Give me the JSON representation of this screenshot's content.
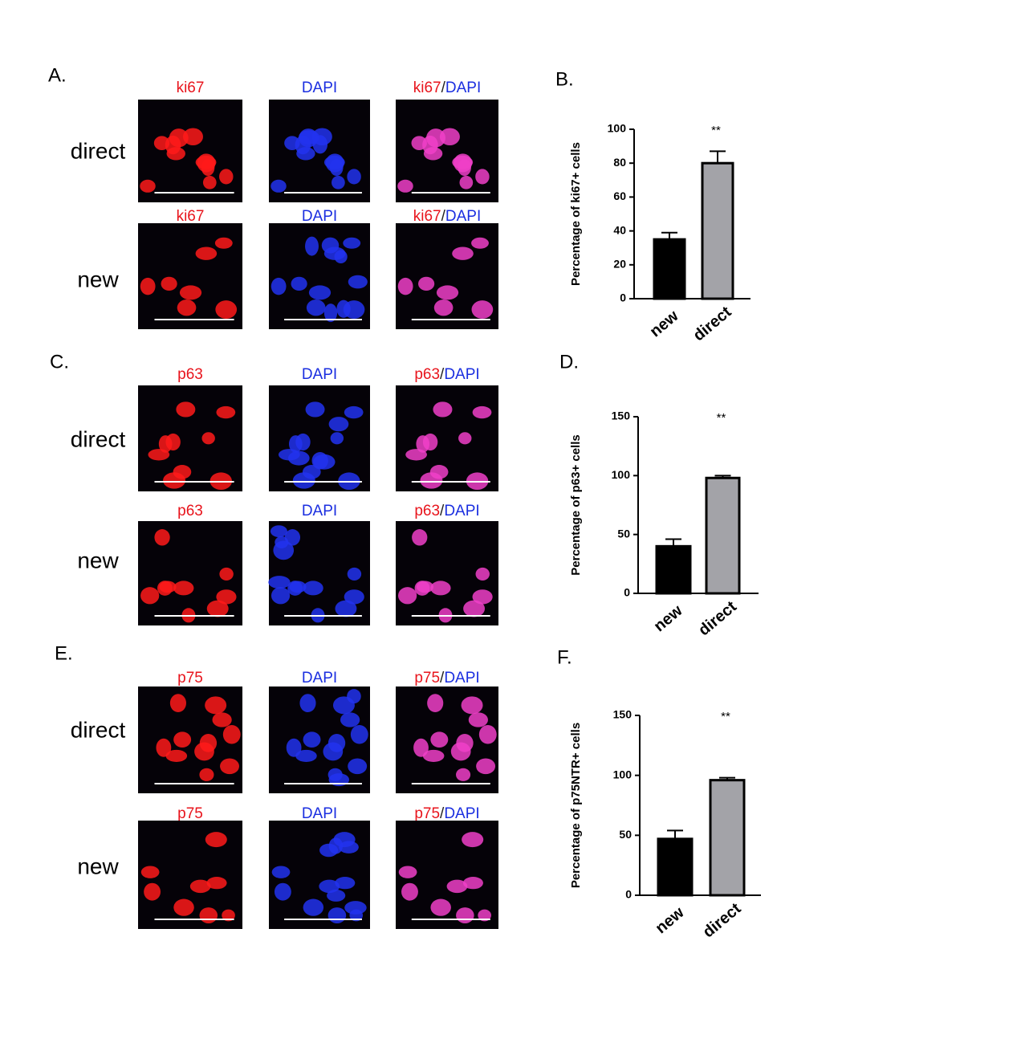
{
  "image_panels": [
    {
      "panel_label": "A.",
      "rows": [
        {
          "name": "direct",
          "channel_labels": [
            "ki67",
            "DAPI"
          ],
          "merge_label": [
            "ki67",
            "/",
            "DAPI"
          ]
        },
        {
          "name": "new",
          "channel_labels": [
            "ki67",
            "DAPI"
          ],
          "merge_label": [
            "ki67",
            "/",
            "DAPI"
          ]
        }
      ]
    },
    {
      "panel_label": "C.",
      "rows": [
        {
          "name": "direct",
          "channel_labels": [
            "p63",
            "DAPI"
          ],
          "merge_label": [
            "p63",
            "/",
            "DAPI"
          ]
        },
        {
          "name": "new",
          "channel_labels": [
            "p63",
            "DAPI"
          ],
          "merge_label": [
            "p63",
            "/",
            "DAPI"
          ]
        }
      ]
    },
    {
      "panel_label": "E.",
      "rows": [
        {
          "name": "direct",
          "channel_labels": [
            "p75",
            "DAPI"
          ],
          "merge_label": [
            "p75",
            "/",
            "DAPI"
          ]
        },
        {
          "name": "new",
          "channel_labels": [
            "p75",
            "DAPI"
          ],
          "merge_label": [
            "p75",
            "/",
            "DAPI"
          ]
        }
      ]
    }
  ],
  "chart_data": [
    {
      "type": "bar",
      "panel_label": "B.",
      "y_label": "Percentage of ki67+ cells",
      "categories": [
        "new",
        "direct"
      ],
      "values": [
        35,
        80
      ],
      "errors": [
        4,
        7
      ],
      "colors": [
        "#000000",
        "#a3a3a8"
      ],
      "annotation": "**",
      "ylim": [
        0,
        100
      ],
      "yticks": [
        0,
        20,
        40,
        60,
        80,
        100
      ]
    },
    {
      "type": "bar",
      "panel_label": "D.",
      "y_label": "Percentage of p63+ cells",
      "categories": [
        "new",
        "direct"
      ],
      "values": [
        40,
        98
      ],
      "errors": [
        6,
        2
      ],
      "colors": [
        "#000000",
        "#a3a3a8"
      ],
      "annotation": "**",
      "ylim": [
        0,
        150
      ],
      "yticks": [
        0,
        50,
        100,
        150
      ]
    },
    {
      "type": "bar",
      "panel_label": "F.",
      "y_label": "Percentage of p75NTR+ cells",
      "categories": [
        "new",
        "direct"
      ],
      "values": [
        47,
        96
      ],
      "errors": [
        7,
        2
      ],
      "colors": [
        "#000000",
        "#a3a3a8"
      ],
      "annotation": "**",
      "ylim": [
        0,
        150
      ],
      "yticks": [
        0,
        50,
        100,
        150
      ]
    }
  ]
}
